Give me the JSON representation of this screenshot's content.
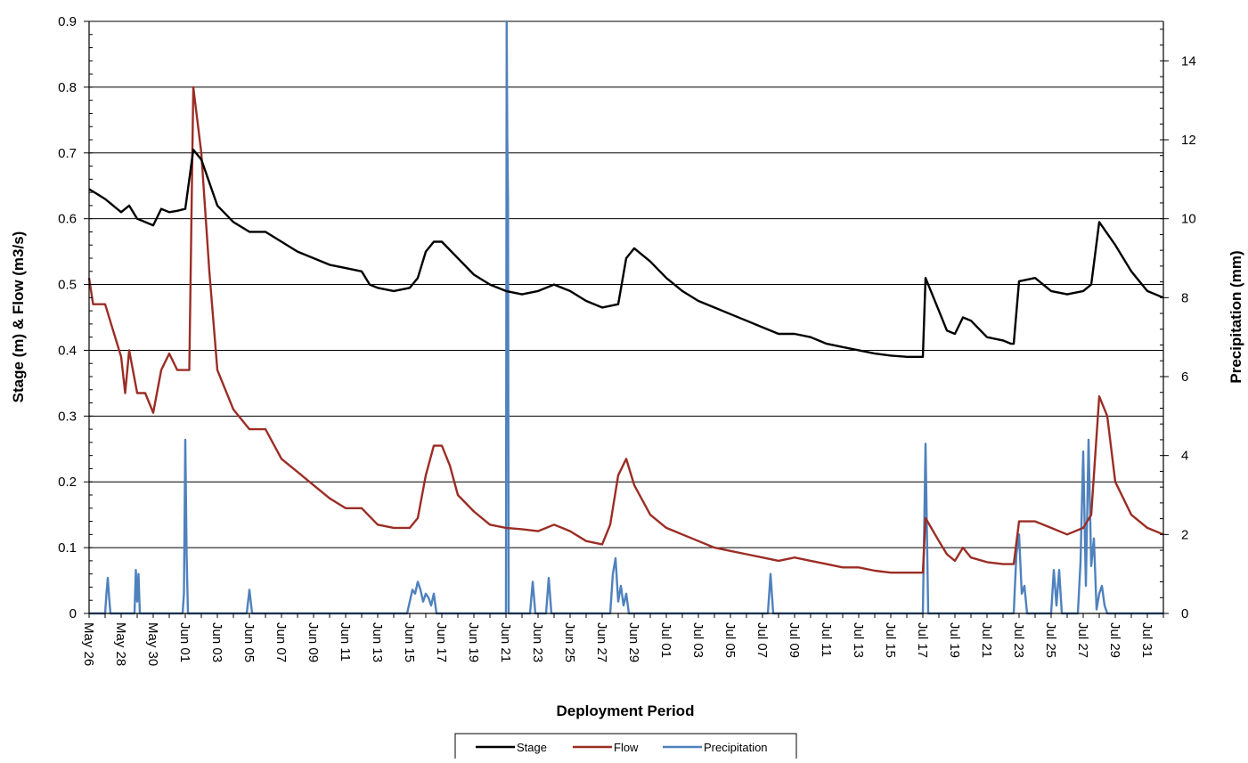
{
  "chart_data": {
    "type": "line",
    "title": "",
    "xlabel": "Deployment Period",
    "ylabel_left": "Stage (m) & Flow (m3/s)",
    "ylabel_right": "Precipitation (mm)",
    "x_start": "2009-05-26",
    "x_end": "2009-08-01",
    "ylim_left": [
      0,
      0.9
    ],
    "ylim_right": [
      0,
      15
    ],
    "y_ticks_left": [
      0,
      0.1,
      0.2,
      0.3,
      0.4,
      0.5,
      0.6,
      0.7,
      0.8,
      0.9
    ],
    "y_tick_labels_left": [
      "0",
      "0.1",
      "0.2",
      "0.3",
      "0.4",
      "0.5",
      "0.6",
      "0.7",
      "0.8",
      "0.9"
    ],
    "y_ticks_right": [
      0,
      2,
      4,
      6,
      8,
      10,
      12,
      14
    ],
    "y_tick_labels_right": [
      "0",
      "2",
      "4",
      "6",
      "8",
      "10",
      "12",
      "14"
    ],
    "x_ticks": [
      "2009-05-26",
      "2009-05-28",
      "2009-05-30",
      "2009-06-01",
      "2009-06-03",
      "2009-06-05",
      "2009-06-07",
      "2009-06-09",
      "2009-06-11",
      "2009-06-13",
      "2009-06-15",
      "2009-06-17",
      "2009-06-19",
      "2009-06-21",
      "2009-06-23",
      "2009-06-25",
      "2009-06-27",
      "2009-06-29",
      "2009-07-01",
      "2009-07-03",
      "2009-07-05",
      "2009-07-07",
      "2009-07-09",
      "2009-07-11",
      "2009-07-13",
      "2009-07-15",
      "2009-07-17",
      "2009-07-19",
      "2009-07-21",
      "2009-07-23",
      "2009-07-25",
      "2009-07-27",
      "2009-07-29",
      "2009-07-31"
    ],
    "x_tick_labels": [
      "May 26",
      "May 28",
      "May 30",
      "Jun 01",
      "Jun 03",
      "Jun 05",
      "Jun 07",
      "Jun 09",
      "Jun 11",
      "Jun 13",
      "Jun 15",
      "Jun 17",
      "Jun 19",
      "Jun 21",
      "Jun 23",
      "Jun 25",
      "Jun 27",
      "Jun 29",
      "Jul 01",
      "Jul 03",
      "Jul 05",
      "Jul 07",
      "Jul 09",
      "Jul 11",
      "Jul 13",
      "Jul 15",
      "Jul 17",
      "Jul 19",
      "Jul 21",
      "Jul 23",
      "Jul 25",
      "Jul 27",
      "Jul 29",
      "Jul 31"
    ],
    "grid": "horizontal",
    "legend_position": "bottom-center",
    "series": [
      {
        "name": "Stage",
        "axis": "left",
        "color": "#000000",
        "x": [
          "2009-05-26",
          "2009-05-27",
          "2009-05-28",
          "2009-05-28 12:00",
          "2009-05-29",
          "2009-05-29 12:00",
          "2009-05-30",
          "2009-05-30 12:00",
          "2009-05-31",
          "2009-05-31 12:00",
          "2009-06-01",
          "2009-06-01 12:00",
          "2009-06-02",
          "2009-06-03",
          "2009-06-04",
          "2009-06-05",
          "2009-06-06",
          "2009-06-07",
          "2009-06-08",
          "2009-06-09",
          "2009-06-10",
          "2009-06-11",
          "2009-06-12",
          "2009-06-12 12:00",
          "2009-06-13",
          "2009-06-14",
          "2009-06-15",
          "2009-06-15 12:00",
          "2009-06-16",
          "2009-06-16 12:00",
          "2009-06-17",
          "2009-06-18",
          "2009-06-19",
          "2009-06-20",
          "2009-06-21",
          "2009-06-22",
          "2009-06-23",
          "2009-06-24",
          "2009-06-25",
          "2009-06-26",
          "2009-06-27",
          "2009-06-28",
          "2009-06-28 12:00",
          "2009-06-29",
          "2009-06-30",
          "2009-07-01",
          "2009-07-02",
          "2009-07-03",
          "2009-07-04",
          "2009-07-05",
          "2009-07-06",
          "2009-07-07",
          "2009-07-08",
          "2009-07-09",
          "2009-07-10",
          "2009-07-11",
          "2009-07-12",
          "2009-07-13",
          "2009-07-14",
          "2009-07-15",
          "2009-07-16",
          "2009-07-17",
          "2009-07-17 04:00",
          "2009-07-18",
          "2009-07-18 12:00",
          "2009-07-19",
          "2009-07-19 12:00",
          "2009-07-20",
          "2009-07-21",
          "2009-07-22",
          "2009-07-22 12:00",
          "2009-07-22 16:00",
          "2009-07-23",
          "2009-07-24",
          "2009-07-25",
          "2009-07-26",
          "2009-07-27",
          "2009-07-27 12:00",
          "2009-07-28",
          "2009-07-29",
          "2009-07-30",
          "2009-07-31",
          "2009-08-01"
        ],
        "y": [
          0.645,
          0.63,
          0.61,
          0.62,
          0.6,
          0.595,
          0.59,
          0.615,
          0.61,
          0.612,
          0.615,
          0.705,
          0.69,
          0.62,
          0.595,
          0.58,
          0.58,
          0.565,
          0.55,
          0.54,
          0.53,
          0.525,
          0.52,
          0.5,
          0.495,
          0.49,
          0.495,
          0.51,
          0.55,
          0.565,
          0.565,
          0.54,
          0.515,
          0.5,
          0.49,
          0.485,
          0.49,
          0.5,
          0.49,
          0.475,
          0.465,
          0.47,
          0.54,
          0.555,
          0.535,
          0.51,
          0.49,
          0.475,
          0.465,
          0.455,
          0.445,
          0.435,
          0.425,
          0.425,
          0.42,
          0.41,
          0.405,
          0.4,
          0.395,
          0.392,
          0.39,
          0.39,
          0.51,
          0.46,
          0.43,
          0.425,
          0.45,
          0.445,
          0.42,
          0.415,
          0.41,
          0.41,
          0.505,
          0.51,
          0.49,
          0.485,
          0.49,
          0.5,
          0.595,
          0.56,
          0.52,
          0.49,
          0.48
        ]
      },
      {
        "name": "Flow",
        "axis": "left",
        "color": "#9b2d25",
        "x": [
          "2009-05-26",
          "2009-05-26 06:00",
          "2009-05-27",
          "2009-05-27 12:00",
          "2009-05-28",
          "2009-05-28 06:00",
          "2009-05-28 12:00",
          "2009-05-29",
          "2009-05-29 12:00",
          "2009-05-30",
          "2009-05-30 12:00",
          "2009-05-31",
          "2009-05-31 12:00",
          "2009-06-01",
          "2009-06-01 06:00",
          "2009-06-01 12:00",
          "2009-06-02",
          "2009-06-02 12:00",
          "2009-06-03",
          "2009-06-04",
          "2009-06-05",
          "2009-06-06",
          "2009-06-07",
          "2009-06-08",
          "2009-06-09",
          "2009-06-10",
          "2009-06-11",
          "2009-06-12",
          "2009-06-13",
          "2009-06-14",
          "2009-06-15",
          "2009-06-15 12:00",
          "2009-06-16",
          "2009-06-16 12:00",
          "2009-06-17",
          "2009-06-17 12:00",
          "2009-06-18",
          "2009-06-19",
          "2009-06-20",
          "2009-06-21",
          "2009-06-22",
          "2009-06-23",
          "2009-06-24",
          "2009-06-25",
          "2009-06-26",
          "2009-06-27",
          "2009-06-27 12:00",
          "2009-06-28",
          "2009-06-28 12:00",
          "2009-06-29",
          "2009-06-30",
          "2009-07-01",
          "2009-07-02",
          "2009-07-03",
          "2009-07-04",
          "2009-07-05",
          "2009-07-06",
          "2009-07-07",
          "2009-07-08",
          "2009-07-09",
          "2009-07-10",
          "2009-07-11",
          "2009-07-12",
          "2009-07-13",
          "2009-07-14",
          "2009-07-15",
          "2009-07-16",
          "2009-07-17",
          "2009-07-17 04:00",
          "2009-07-18",
          "2009-07-18 12:00",
          "2009-07-19",
          "2009-07-19 12:00",
          "2009-07-20",
          "2009-07-21",
          "2009-07-22",
          "2009-07-22 12:00",
          "2009-07-22 16:00",
          "2009-07-23",
          "2009-07-24",
          "2009-07-25",
          "2009-07-26",
          "2009-07-27",
          "2009-07-27 12:00",
          "2009-07-28",
          "2009-07-28 12:00",
          "2009-07-29",
          "2009-07-30",
          "2009-07-31",
          "2009-08-01"
        ],
        "y": [
          0.51,
          0.47,
          0.47,
          0.43,
          0.39,
          0.335,
          0.4,
          0.335,
          0.335,
          0.305,
          0.37,
          0.395,
          0.37,
          0.37,
          0.37,
          0.8,
          0.7,
          0.52,
          0.37,
          0.31,
          0.28,
          0.28,
          0.235,
          0.215,
          0.195,
          0.175,
          0.16,
          0.16,
          0.135,
          0.13,
          0.13,
          0.145,
          0.21,
          0.255,
          0.255,
          0.225,
          0.18,
          0.155,
          0.135,
          0.13,
          0.128,
          0.125,
          0.135,
          0.125,
          0.11,
          0.105,
          0.135,
          0.21,
          0.235,
          0.195,
          0.15,
          0.13,
          0.12,
          0.11,
          0.1,
          0.095,
          0.09,
          0.085,
          0.08,
          0.085,
          0.08,
          0.075,
          0.07,
          0.07,
          0.065,
          0.062,
          0.062,
          0.062,
          0.145,
          0.11,
          0.09,
          0.08,
          0.1,
          0.085,
          0.078,
          0.075,
          0.075,
          0.075,
          0.14,
          0.14,
          0.13,
          0.12,
          0.13,
          0.15,
          0.33,
          0.3,
          0.2,
          0.15,
          0.13,
          0.12
        ]
      },
      {
        "name": "Precipitation",
        "axis": "right",
        "color": "#4f81bd",
        "x": [
          "2009-05-26",
          "2009-05-27",
          "2009-05-27 02:00",
          "2009-05-27 04:00",
          "2009-05-27 06:00",
          "2009-05-27 08:00",
          "2009-05-28 20:00",
          "2009-05-28 22:00",
          "2009-05-29 00:00",
          "2009-05-29 02:00",
          "2009-05-29 04:00",
          "2009-05-31 20:00",
          "2009-05-31 22:00",
          "2009-06-01 00:00",
          "2009-06-01 02:00",
          "2009-06-01 04:00",
          "2009-06-01 06:00",
          "2009-06-01 08:00",
          "2009-06-04 20:00",
          "2009-06-05 00:00",
          "2009-06-05 04:00",
          "2009-06-14 20:00",
          "2009-06-15 00:00",
          "2009-06-15 04:00",
          "2009-06-15 08:00",
          "2009-06-15 12:00",
          "2009-06-15 16:00",
          "2009-06-15 20:00",
          "2009-06-16 00:00",
          "2009-06-16 04:00",
          "2009-06-16 08:00",
          "2009-06-16 12:00",
          "2009-06-16 16:00",
          "2009-06-21 00:00",
          "2009-06-21 01:00",
          "2009-06-21 02:00",
          "2009-06-21 03:00",
          "2009-06-21 04:00",
          "2009-06-22 12:00",
          "2009-06-22 16:00",
          "2009-06-22 20:00",
          "2009-06-23 12:00",
          "2009-06-23 16:00",
          "2009-06-23 20:00",
          "2009-06-27 12:00",
          "2009-06-27 16:00",
          "2009-06-27 20:00",
          "2009-06-28 00:00",
          "2009-06-28 04:00",
          "2009-06-28 08:00",
          "2009-06-28 12:00",
          "2009-06-28 16:00",
          "2009-07-07 08:00",
          "2009-07-07 12:00",
          "2009-07-07 16:00",
          "2009-07-17 00:00",
          "2009-07-17 04:00",
          "2009-07-17 08:00",
          "2009-07-22 16:00",
          "2009-07-22 20:00",
          "2009-07-23 00:00",
          "2009-07-23 04:00",
          "2009-07-23 08:00",
          "2009-07-23 12:00",
          "2009-07-25 00:00",
          "2009-07-25 04:00",
          "2009-07-25 08:00",
          "2009-07-25 12:00",
          "2009-07-25 16:00",
          "2009-07-26 16:00",
          "2009-07-26 20:00",
          "2009-07-27 00:00",
          "2009-07-27 04:00",
          "2009-07-27 08:00",
          "2009-07-27 12:00",
          "2009-07-27 16:00",
          "2009-07-27 20:00",
          "2009-07-28 00:00",
          "2009-07-28 04:00",
          "2009-07-28 08:00",
          "2009-07-28 12:00",
          "2009-08-01"
        ],
        "y": [
          0,
          0,
          0.5,
          0.9,
          0.4,
          0,
          0,
          1.1,
          0.3,
          1.0,
          0,
          0,
          0.5,
          4.4,
          1.5,
          0,
          0,
          0,
          0,
          0.6,
          0,
          0,
          0.3,
          0.6,
          0.5,
          0.8,
          0.6,
          0.3,
          0.5,
          0.4,
          0.2,
          0.5,
          0,
          0,
          15,
          12,
          10.5,
          0,
          0,
          0.8,
          0,
          0,
          0.9,
          0,
          0,
          1.0,
          1.4,
          0.3,
          0.7,
          0.2,
          0.5,
          0,
          0,
          1.0,
          0,
          0,
          4.3,
          0,
          0,
          1.5,
          2.0,
          0.5,
          0.7,
          0,
          0,
          1.1,
          0.2,
          1.1,
          0,
          0,
          1.3,
          4.1,
          0.7,
          4.4,
          1.2,
          1.9,
          0.1,
          0.5,
          0.7,
          0.2,
          0,
          0
        ]
      }
    ]
  }
}
